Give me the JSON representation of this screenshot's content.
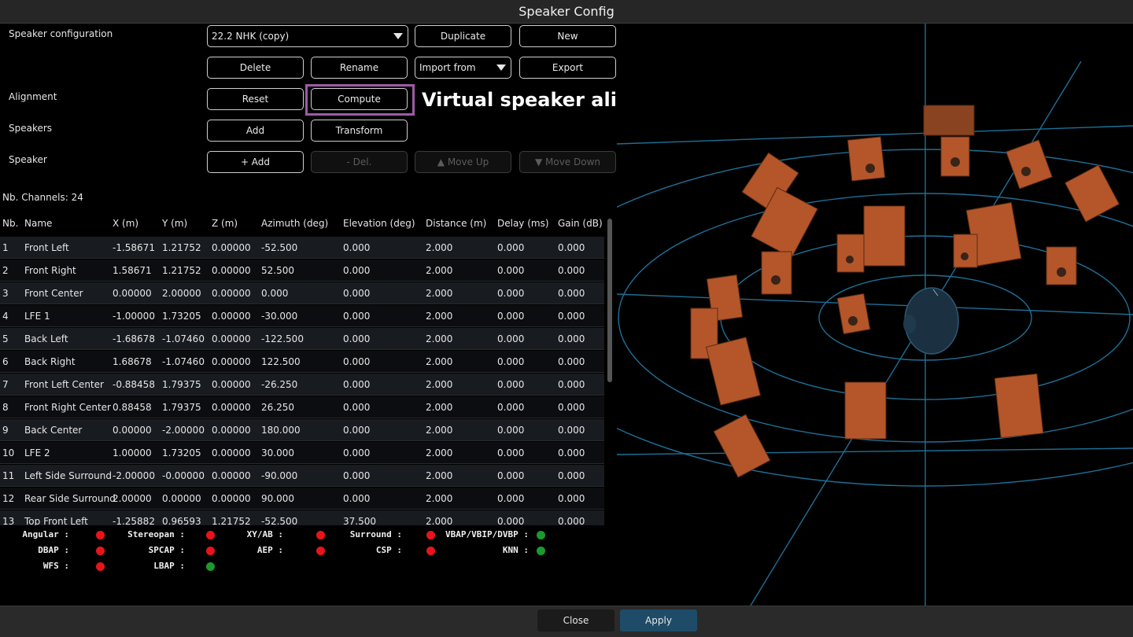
{
  "window": {
    "title": "Speaker Config"
  },
  "labels": {
    "speaker_configuration": "Speaker configuration",
    "alignment": "Alignment",
    "speakers": "Speakers",
    "speaker": "Speaker"
  },
  "config_combo": {
    "value": "22.2 NHK (copy)"
  },
  "import_combo": {
    "value": "Import from"
  },
  "buttons": {
    "duplicate": "Duplicate",
    "new": "New",
    "delete": "Delete",
    "rename": "Rename",
    "export": "Export",
    "reset": "Reset",
    "compute": "Compute",
    "add": "Add",
    "transform": "Transform",
    "plus_add": "+ Add",
    "del": "- Del.",
    "move_up": "▲ Move Up",
    "move_down": "▼ Move Down"
  },
  "annotation": "Virtual speaker alignment algorithm",
  "channels_label": "Nb. Channels: 24",
  "table": {
    "headers": [
      "Nb.",
      "Name",
      "X (m)",
      "Y (m)",
      "Z (m)",
      "Azimuth (deg)",
      "Elevation (deg)",
      "Distance (m)",
      "Delay (ms)",
      "Gain (dB)"
    ],
    "rows": [
      [
        "1",
        "Front Left",
        "-1.58671",
        "1.21752",
        "0.00000",
        "-52.500",
        "0.000",
        "2.000",
        "0.000",
        "0.000"
      ],
      [
        "2",
        "Front Right",
        "1.58671",
        "1.21752",
        "0.00000",
        "52.500",
        "0.000",
        "2.000",
        "0.000",
        "0.000"
      ],
      [
        "3",
        "Front Center",
        "0.00000",
        "2.00000",
        "0.00000",
        "0.000",
        "0.000",
        "2.000",
        "0.000",
        "0.000"
      ],
      [
        "4",
        "LFE 1",
        "-1.00000",
        "1.73205",
        "0.00000",
        "-30.000",
        "0.000",
        "2.000",
        "0.000",
        "0.000"
      ],
      [
        "5",
        "Back Left",
        "-1.68678",
        "-1.07460",
        "0.00000",
        "-122.500",
        "0.000",
        "2.000",
        "0.000",
        "0.000"
      ],
      [
        "6",
        "Back Right",
        "1.68678",
        "-1.07460",
        "0.00000",
        "122.500",
        "0.000",
        "2.000",
        "0.000",
        "0.000"
      ],
      [
        "7",
        "Front Left Center",
        "-0.88458",
        "1.79375",
        "0.00000",
        "-26.250",
        "0.000",
        "2.000",
        "0.000",
        "0.000"
      ],
      [
        "8",
        "Front Right Center",
        "0.88458",
        "1.79375",
        "0.00000",
        "26.250",
        "0.000",
        "2.000",
        "0.000",
        "0.000"
      ],
      [
        "9",
        "Back Center",
        "0.00000",
        "-2.00000",
        "0.00000",
        "180.000",
        "0.000",
        "2.000",
        "0.000",
        "0.000"
      ],
      [
        "10",
        "LFE 2",
        "1.00000",
        "1.73205",
        "0.00000",
        "30.000",
        "0.000",
        "2.000",
        "0.000",
        "0.000"
      ],
      [
        "11",
        "Left Side Surround",
        "-2.00000",
        "-0.00000",
        "0.00000",
        "-90.000",
        "0.000",
        "2.000",
        "0.000",
        "0.000"
      ],
      [
        "12",
        "Rear Side Surround",
        "2.00000",
        "0.00000",
        "0.00000",
        "90.000",
        "0.000",
        "2.000",
        "0.000",
        "0.000"
      ],
      [
        "13",
        "Top Front Left",
        "-1.25882",
        "0.96593",
        "1.21752",
        "-52.500",
        "37.500",
        "2.000",
        "0.000",
        "0.000"
      ]
    ]
  },
  "status": {
    "items": [
      {
        "label": "Angular :",
        "state": "red"
      },
      {
        "label": "Stereopan :",
        "state": "red"
      },
      {
        "label": "XY/AB :",
        "state": "red"
      },
      {
        "label": "Surround :",
        "state": "red"
      },
      {
        "label": "VBAP/VBIP/DVBP :",
        "state": "green"
      },
      {
        "label": "DBAP :",
        "state": "red"
      },
      {
        "label": "SPCAP :",
        "state": "red"
      },
      {
        "label": "AEP :",
        "state": "red"
      },
      {
        "label": "CSP :",
        "state": "red"
      },
      {
        "label": "KNN :",
        "state": "green"
      },
      {
        "label": "WFS :",
        "state": "red"
      },
      {
        "label": "LBAP :",
        "state": "green"
      }
    ]
  },
  "footer": {
    "close": "Close",
    "apply": "Apply"
  },
  "colors": {
    "accent_apply": "#1d4b68",
    "highlight": "#a05aa8",
    "speaker": "#b4562a",
    "grid": "#1e6f96",
    "status_red": "#e8141a",
    "status_green": "#1b9a2e"
  },
  "icons": {
    "combo_arrow": "chevron-down-icon",
    "head": "listener-head-icon"
  }
}
